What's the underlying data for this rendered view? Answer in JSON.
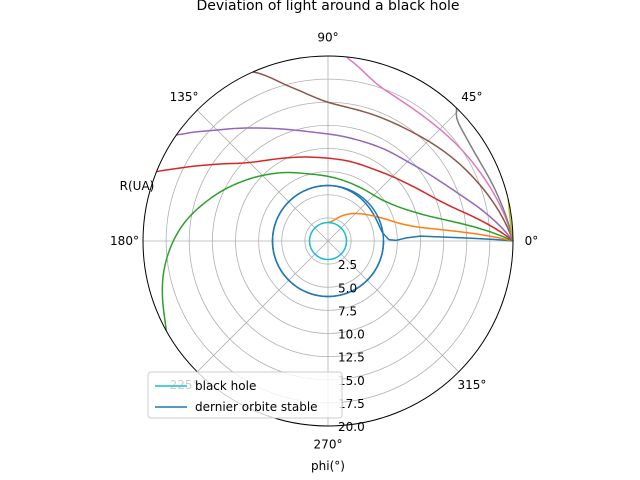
{
  "chart_data": {
    "type": "polar-line",
    "title": "Deviation of light around a black hole",
    "rlabel": "R(UA)",
    "thetalabel": "phi(°)",
    "rlim": [
      0,
      20
    ],
    "rticks": [
      "2.5",
      "5.0",
      "7.5",
      "10.0",
      "12.5",
      "15.0",
      "17.5",
      "20.0"
    ],
    "rtick_values": [
      2.5,
      5,
      7.5,
      10,
      12.5,
      15,
      17.5,
      20
    ],
    "theta_ticks": [
      "0°",
      "45°",
      "90°",
      "135°",
      "180°",
      "225°",
      "270°",
      "315°"
    ],
    "theta_tick_values": [
      0,
      45,
      90,
      135,
      180,
      225,
      270,
      315
    ],
    "grid": true,
    "legend_position": "lower-left",
    "circles": [
      {
        "name": "black hole",
        "radius": 2.0,
        "color": "#17becf"
      },
      {
        "name": "dernier orbite stable",
        "radius": 6.0,
        "color": "#1f77b4"
      }
    ],
    "photon_source": {
      "r": 20,
      "phi_deg": 0
    },
    "trajectories": [
      {
        "color": "#1f77b4",
        "shape": "captured_spiral",
        "impact_parameter": 0.0,
        "points_r_phi": [
          [
            20,
            0
          ],
          [
            10,
            3
          ],
          [
            6.0,
            8
          ],
          [
            6.0,
            90
          ],
          [
            6.0,
            180
          ],
          [
            6.0,
            270
          ],
          [
            6.0,
            360
          ]
        ]
      },
      {
        "color": "#ff7f0e",
        "shape": "captured",
        "impact_parameter": 3.0,
        "points_r_phi": [
          [
            20,
            0
          ],
          [
            12,
            6
          ],
          [
            8.5,
            12
          ],
          [
            6.5,
            22
          ],
          [
            5,
            35
          ],
          [
            3.5,
            55
          ],
          [
            2.3,
            75
          ],
          [
            2.0,
            90
          ]
        ]
      },
      {
        "color": "#2ca02c",
        "shape": "escape",
        "impact_parameter": 6.0,
        "points_r_phi": [
          [
            20,
            0
          ],
          [
            13,
            10
          ],
          [
            9.5,
            20
          ],
          [
            7.5,
            35
          ],
          [
            6.8,
            55
          ],
          [
            6.8,
            80
          ],
          [
            7.5,
            105
          ],
          [
            9,
            125
          ],
          [
            11,
            143
          ],
          [
            13.5,
            160
          ],
          [
            16,
            175
          ],
          [
            18,
            190
          ],
          [
            19.5,
            205
          ],
          [
            20,
            209
          ]
        ]
      },
      {
        "color": "#d62728",
        "shape": "escape",
        "impact_parameter": 8.9,
        "points_r_phi": [
          [
            20,
            0
          ],
          [
            14,
            15
          ],
          [
            11,
            32
          ],
          [
            9.3,
            55
          ],
          [
            8.9,
            80
          ],
          [
            9.2,
            100
          ],
          [
            10.3,
            120
          ],
          [
            12,
            135
          ],
          [
            14.5,
            145
          ],
          [
            17.5,
            153
          ],
          [
            20,
            158
          ]
        ]
      },
      {
        "color": "#9467bd",
        "shape": "escape",
        "impact_parameter": 11.4,
        "points_r_phi": [
          [
            20,
            0
          ],
          [
            15,
            20
          ],
          [
            12.5,
            40
          ],
          [
            11.6,
            60
          ],
          [
            11.4,
            80
          ],
          [
            12,
            100
          ],
          [
            13.8,
            118
          ],
          [
            16.5,
            133
          ],
          [
            19,
            142
          ],
          [
            20,
            145
          ]
        ]
      },
      {
        "color": "#8c564b",
        "shape": "escape",
        "impact_parameter": 14.5,
        "points_r_phi": [
          [
            20,
            0
          ],
          [
            17,
            25
          ],
          [
            15,
            50
          ],
          [
            14.5,
            72
          ],
          [
            15,
            90
          ],
          [
            17,
            103
          ],
          [
            19.5,
            112
          ],
          [
            20,
            114
          ]
        ]
      },
      {
        "color": "#e377c2",
        "shape": "escape",
        "impact_parameter": 16.8,
        "points_r_phi": [
          [
            20,
            0
          ],
          [
            18,
            25
          ],
          [
            17,
            50
          ],
          [
            17.5,
            70
          ],
          [
            19.5,
            82
          ],
          [
            20,
            84
          ]
        ]
      },
      {
        "color": "#7f7f7f",
        "shape": "escape",
        "impact_parameter": 16.0,
        "points_r_phi": [
          [
            20,
            0
          ],
          [
            19,
            15
          ],
          [
            18.5,
            30
          ],
          [
            19,
            42
          ],
          [
            20,
            46
          ]
        ]
      },
      {
        "color": "#bcbd22",
        "shape": "escape",
        "impact_parameter": 19.8,
        "points_r_phi": [
          [
            20,
            0
          ],
          [
            19.85,
            4
          ],
          [
            19.85,
            9
          ],
          [
            20,
            13
          ]
        ]
      }
    ]
  }
}
